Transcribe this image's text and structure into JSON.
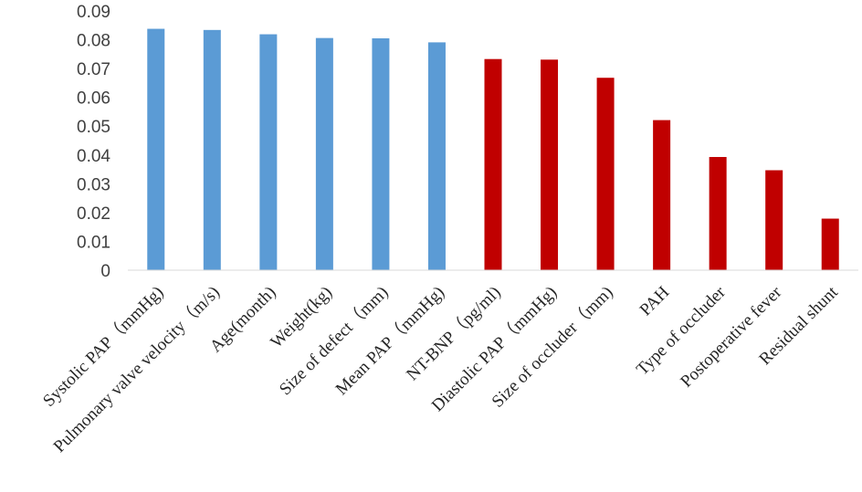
{
  "chart_data": {
    "type": "bar",
    "title": "",
    "xlabel": "",
    "ylabel": "",
    "ylim": [
      0,
      0.09
    ],
    "yticks": [
      "0",
      "0.01",
      "0.02",
      "0.03",
      "0.04",
      "0.05",
      "0.06",
      "0.07",
      "0.08",
      "0.09"
    ],
    "grid": false,
    "legend": "none",
    "categories": [
      "Systolic PAP（mmHg)",
      "Pulmonary valve velocity（m/s)",
      "Age(month)",
      "Weight(kg)",
      "Size of defect（mm)",
      "Mean PAP（mmHg)",
      "NT-BNP（pg/ml)",
      "Diastolic PAP（mmHg)",
      "Size of occluder（mm)",
      "PAH",
      "Type of occluder",
      "Postoperative fever",
      "Residual shunt"
    ],
    "values": [
      0.0838,
      0.0834,
      0.0819,
      0.0806,
      0.0805,
      0.0791,
      0.0733,
      0.0731,
      0.0668,
      0.0521,
      0.0393,
      0.0347,
      0.0179
    ],
    "bar_colors": [
      "#5b9bd5",
      "#5b9bd5",
      "#5b9bd5",
      "#5b9bd5",
      "#5b9bd5",
      "#5b9bd5",
      "#c00000",
      "#c00000",
      "#c00000",
      "#c00000",
      "#c00000",
      "#c00000",
      "#c00000"
    ]
  }
}
